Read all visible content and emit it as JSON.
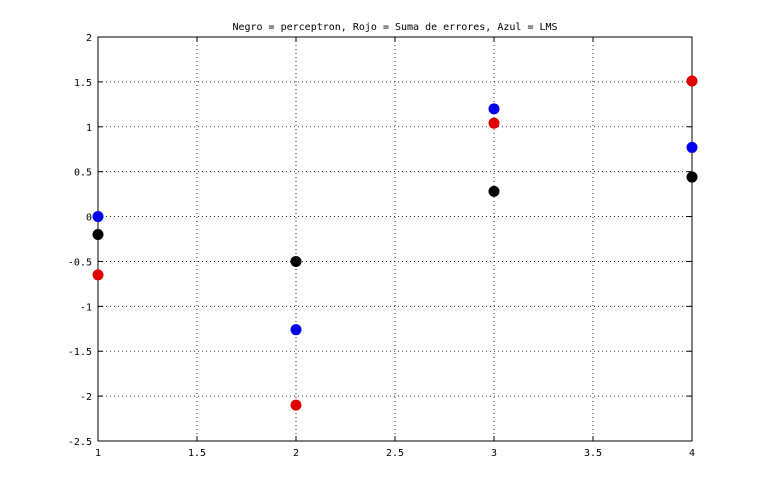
{
  "chart_data": {
    "type": "scatter",
    "title": "Negro = perceptron, Rojo = Suma de errores, Azul = LMS",
    "xlabel": "",
    "ylabel": "",
    "xlim": [
      1,
      4
    ],
    "ylim": [
      -2.5,
      2
    ],
    "x_ticks": [
      1,
      1.5,
      2,
      2.5,
      3,
      3.5,
      4
    ],
    "x_tick_labels": [
      "1",
      "1.5",
      "2",
      "2.5",
      "3",
      "3.5",
      "4"
    ],
    "y_ticks": [
      -2.5,
      -2,
      -1.5,
      -1,
      -0.5,
      0,
      0.5,
      1,
      1.5,
      2
    ],
    "y_tick_labels": [
      "-2.5",
      "-2",
      "-1.5",
      "-1",
      "-0.5",
      "0",
      "0.5",
      "1",
      "1.5",
      "2"
    ],
    "grid": true,
    "legend": "none",
    "series": [
      {
        "color": "#000000",
        "x": [
          1,
          2,
          3,
          4
        ],
        "y": [
          -0.2,
          -0.5,
          0.28,
          0.44
        ]
      },
      {
        "color": "#e00000",
        "x": [
          1,
          2,
          3,
          4
        ],
        "y": [
          -0.65,
          -2.1,
          1.04,
          1.51
        ]
      },
      {
        "color": "#0000ee",
        "x": [
          1,
          2,
          3,
          4
        ],
        "y": [
          0.0,
          -1.26,
          1.2,
          0.77
        ]
      }
    ]
  }
}
